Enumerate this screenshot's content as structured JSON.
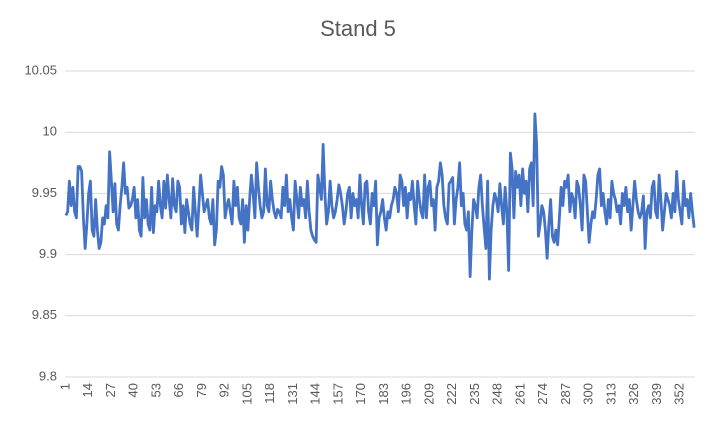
{
  "chart_data": {
    "type": "line",
    "title": "Stand 5",
    "color": "#4472c4",
    "ylim": [
      9.8,
      10.05
    ],
    "yticks": [
      9.8,
      9.85,
      9.9,
      9.95,
      10,
      10.05
    ],
    "grid": true,
    "categories": [
      1,
      null,
      null,
      null,
      null,
      null,
      null,
      null,
      null,
      null,
      null,
      null,
      null,
      14,
      null,
      null,
      null,
      null,
      null,
      null,
      null,
      null,
      null,
      null,
      null,
      null,
      27,
      null,
      null,
      null,
      null,
      null,
      null,
      null,
      null,
      null,
      null,
      null,
      null,
      40,
      null,
      null,
      null,
      null,
      null,
      null,
      null,
      null,
      null,
      null,
      null,
      null,
      53,
      null,
      null,
      null,
      null,
      null,
      null,
      null,
      null,
      null,
      null,
      null,
      null,
      66,
      null,
      null,
      null,
      null,
      null,
      null,
      null,
      null,
      null,
      null,
      null,
      null,
      79,
      null,
      null,
      null,
      null,
      null,
      null,
      null,
      null,
      null,
      null,
      null,
      null,
      92,
      null,
      null,
      null,
      null,
      null,
      null,
      null,
      null,
      null,
      null,
      null,
      null,
      105,
      null,
      null,
      null,
      null,
      null,
      null,
      null,
      null,
      null,
      null,
      null,
      null,
      118,
      null,
      null,
      null,
      null,
      null,
      null,
      null,
      null,
      null,
      null,
      null,
      null,
      131,
      null,
      null,
      null,
      null,
      null,
      null,
      null,
      null,
      null,
      null,
      null,
      null,
      144,
      null,
      null,
      null,
      null,
      null,
      null,
      null,
      null,
      null,
      null,
      null,
      null,
      157,
      null,
      null,
      null,
      null,
      null,
      null,
      null,
      null,
      null,
      null,
      null,
      null,
      170,
      null,
      null,
      null,
      null,
      null,
      null,
      null,
      null,
      null,
      null,
      null,
      null,
      183,
      null,
      null,
      null,
      null,
      null,
      null,
      null,
      null,
      null,
      null,
      null,
      null,
      196,
      null,
      null,
      null,
      null,
      null,
      null,
      null,
      null,
      null,
      null,
      null,
      null,
      209,
      null,
      null,
      null,
      null,
      null,
      null,
      null,
      null,
      null,
      null,
      null,
      null,
      222,
      null,
      null,
      null,
      null,
      null,
      null,
      null,
      null,
      null,
      null,
      null,
      null,
      235,
      null,
      null,
      null,
      null,
      null,
      null,
      null,
      null,
      null,
      null,
      null,
      null,
      248,
      null,
      null,
      null,
      null,
      null,
      null,
      null,
      null,
      null,
      null,
      null,
      null,
      261,
      null,
      null,
      null,
      null,
      null,
      null,
      null,
      null,
      null,
      null,
      null,
      null,
      274,
      null,
      null,
      null,
      null,
      null,
      null,
      null,
      null,
      null,
      null,
      null,
      null,
      287,
      null,
      null,
      null,
      null,
      null,
      null,
      null,
      null,
      null,
      null,
      null,
      null,
      300,
      null,
      null,
      null,
      null,
      null,
      null,
      null,
      null,
      null,
      null,
      null,
      null,
      313,
      null,
      null,
      null,
      null,
      null,
      null,
      null,
      null,
      null,
      null,
      null,
      null,
      326,
      null,
      null,
      null,
      null,
      null,
      null,
      null,
      null,
      null,
      null,
      null,
      null,
      339,
      null,
      null,
      null,
      null,
      null,
      null,
      null,
      null,
      null,
      null,
      null,
      null,
      352,
      null,
      null,
      null,
      null,
      null,
      null,
      null,
      null
    ],
    "values": [
      9.932,
      9.935,
      9.96,
      9.94,
      9.955,
      9.935,
      9.93,
      9.972,
      9.972,
      9.968,
      9.93,
      9.905,
      9.925,
      9.95,
      9.96,
      9.92,
      9.915,
      9.945,
      9.92,
      9.905,
      9.91,
      9.93,
      9.925,
      9.94,
      9.93,
      9.984,
      9.96,
      9.935,
      9.958,
      9.925,
      9.92,
      9.94,
      9.955,
      9.975,
      9.95,
      9.955,
      9.938,
      9.94,
      9.945,
      9.955,
      9.93,
      9.945,
      9.92,
      9.915,
      9.963,
      9.93,
      9.945,
      9.925,
      9.92,
      9.955,
      9.918,
      9.94,
      9.935,
      9.96,
      9.94,
      9.93,
      9.96,
      9.938,
      9.965,
      9.945,
      9.93,
      9.962,
      9.94,
      9.935,
      9.96,
      9.955,
      9.925,
      9.94,
      9.918,
      9.945,
      9.935,
      9.925,
      9.92,
      9.955,
      9.935,
      9.915,
      9.94,
      9.965,
      9.95,
      9.935,
      9.94,
      9.945,
      9.93,
      9.925,
      9.945,
      9.908,
      9.92,
      9.96,
      9.955,
      9.972,
      9.965,
      9.93,
      9.94,
      9.945,
      9.935,
      9.925,
      9.96,
      9.94,
      9.955,
      9.93,
      9.925,
      9.945,
      9.91,
      9.94,
      9.92,
      9.945,
      9.965,
      9.95,
      9.93,
      9.975,
      9.955,
      9.94,
      9.93,
      9.935,
      9.97,
      9.94,
      9.935,
      9.96,
      9.945,
      9.935,
      9.93,
      9.937,
      9.935,
      9.93,
      9.955,
      9.94,
      9.965,
      9.935,
      9.945,
      9.93,
      9.92,
      9.96,
      9.945,
      9.93,
      9.955,
      9.94,
      9.945,
      9.93,
      9.96,
      9.935,
      9.92,
      9.915,
      9.912,
      9.91,
      9.965,
      9.955,
      9.945,
      9.99,
      9.95,
      9.925,
      9.935,
      9.96,
      9.94,
      9.93,
      9.935,
      9.945,
      9.957,
      9.95,
      9.94,
      9.925,
      9.935,
      9.95,
      9.955,
      9.93,
      9.95,
      9.94,
      9.945,
      9.93,
      9.965,
      9.94,
      9.925,
      9.958,
      9.96,
      9.935,
      9.925,
      9.95,
      9.94,
      9.96,
      9.908,
      9.93,
      9.935,
      9.945,
      9.93,
      9.92,
      9.935,
      9.93,
      9.94,
      9.945,
      9.955,
      9.95,
      9.935,
      9.965,
      9.96,
      9.94,
      9.955,
      9.93,
      9.95,
      9.945,
      9.96,
      9.94,
      9.925,
      9.96,
      9.945,
      9.935,
      9.93,
      9.965,
      9.93,
      9.955,
      9.96,
      9.94,
      9.945,
      9.92,
      9.955,
      9.96,
      9.975,
      9.965,
      9.94,
      9.93,
      9.925,
      9.958,
      9.96,
      9.963,
      9.925,
      9.945,
      9.955,
      9.975,
      9.94,
      9.95,
      9.925,
      9.92,
      9.935,
      9.882,
      9.92,
      9.945,
      9.94,
      9.93,
      9.955,
      9.965,
      9.94,
      9.922,
      9.905,
      9.96,
      9.88,
      9.92,
      9.94,
      9.95,
      9.945,
      9.935,
      9.958,
      9.94,
      9.925,
      9.955,
      9.935,
      9.887,
      9.983,
      9.97,
      9.93,
      9.968,
      9.955,
      9.965,
      9.94,
      9.97,
      9.95,
      9.96,
      9.935,
      9.97,
      9.975,
      9.94,
      10.015,
      9.99,
      9.915,
      9.925,
      9.94,
      9.935,
      9.92,
      9.897,
      9.925,
      9.945,
      9.915,
      9.91,
      9.92,
      9.908,
      9.93,
      9.955,
      9.94,
      9.96,
      9.955,
      9.965,
      9.935,
      9.95,
      9.945,
      9.93,
      9.96,
      9.955,
      9.94,
      9.92,
      9.965,
      9.96,
      9.935,
      9.91,
      9.925,
      9.935,
      9.93,
      9.945,
      9.965,
      9.97,
      9.94,
      9.95,
      9.935,
      9.925,
      9.945,
      9.93,
      9.96,
      9.95,
      9.945,
      9.935,
      9.94,
      9.925,
      9.95,
      9.94,
      9.955,
      9.935,
      9.945,
      9.92,
      9.94,
      9.96,
      9.945,
      9.935,
      9.93,
      9.935,
      9.948,
      9.905,
      9.935,
      9.94,
      9.93,
      9.955,
      9.96,
      9.935,
      9.93,
      9.965,
      9.945,
      9.92,
      9.935,
      9.95,
      9.945,
      9.94,
      9.93,
      9.95,
      9.935,
      9.968,
      9.945,
      9.935,
      9.925,
      9.96,
      9.94,
      9.945,
      9.93,
      9.95,
      9.935,
      9.922
    ]
  }
}
